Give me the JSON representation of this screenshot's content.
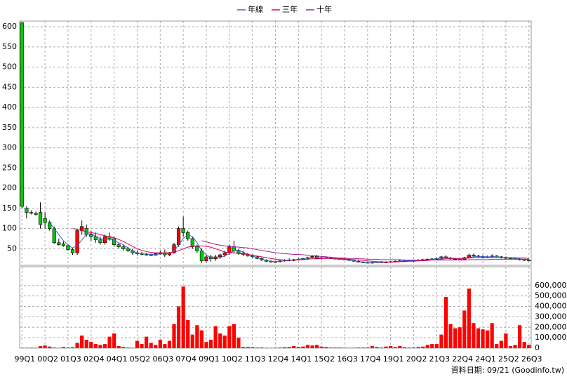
{
  "chart_data": [
    {
      "type": "candlestick",
      "categories": [
        "99Q1",
        null,
        null,
        null,
        null,
        "00Q2",
        null,
        null,
        null,
        null,
        "01Q3",
        null,
        null,
        null,
        null,
        "02Q4",
        null,
        null,
        null,
        null,
        "04Q1",
        null,
        null,
        null,
        null,
        "05Q2",
        null,
        null,
        null,
        null,
        "06Q3",
        null,
        null,
        null,
        null,
        "07Q4",
        null,
        null,
        null,
        null,
        "09Q1",
        null,
        null,
        null,
        null,
        "10Q2",
        null,
        null,
        null,
        null,
        "11Q3",
        null,
        null,
        null,
        null,
        "12Q4",
        null,
        null,
        null,
        null,
        "14Q1",
        null,
        null,
        null,
        null,
        "15Q2",
        null,
        null,
        null,
        null,
        "16Q3",
        null,
        null,
        null,
        null,
        "17Q4",
        null,
        null,
        null,
        null,
        "19Q1",
        null,
        null,
        null,
        null,
        "20Q2",
        null,
        null,
        null,
        null,
        "21Q3",
        null,
        null,
        null,
        null,
        "22Q4",
        null,
        null,
        null,
        null,
        "24Q1",
        null,
        null,
        null,
        null,
        "25Q2",
        null,
        null,
        null,
        null,
        "26Q3"
      ],
      "open": [
        610,
        150,
        140,
        138,
        140,
        125,
        115,
        100,
        65,
        62,
        58,
        48,
        40,
        95,
        100,
        85,
        80,
        72,
        65,
        80,
        75,
        60,
        55,
        50,
        45,
        40,
        38,
        36,
        35,
        34,
        38,
        40,
        35,
        40,
        60,
        100,
        90,
        75,
        55,
        45,
        20,
        30,
        25,
        30,
        35,
        40,
        55,
        45,
        40,
        36,
        33,
        30,
        26,
        22,
        19,
        18,
        18,
        20,
        22,
        21,
        23,
        24,
        26,
        28,
        31,
        26,
        28,
        27,
        26,
        25,
        24,
        23,
        21,
        19,
        17,
        16,
        15,
        16,
        17,
        16,
        17,
        18,
        19,
        20,
        21,
        20,
        21,
        22,
        23,
        24,
        25,
        26,
        30,
        27,
        25,
        24,
        23,
        28,
        34,
        32,
        31,
        30,
        29,
        32,
        30,
        28,
        27,
        26,
        25,
        23,
        22
      ],
      "high": [
        612,
        155,
        145,
        142,
        165,
        140,
        120,
        105,
        75,
        68,
        60,
        52,
        100,
        120,
        110,
        95,
        90,
        80,
        85,
        90,
        80,
        65,
        60,
        55,
        50,
        45,
        42,
        40,
        38,
        40,
        45,
        48,
        42,
        65,
        105,
        130,
        95,
        80,
        60,
        50,
        35,
        35,
        35,
        38,
        45,
        60,
        70,
        50,
        45,
        40,
        36,
        32,
        28,
        24,
        22,
        20,
        22,
        24,
        26,
        25,
        27,
        28,
        30,
        34,
        35,
        30,
        31,
        30,
        28,
        27,
        26,
        25,
        23,
        21,
        19,
        18,
        18,
        18,
        19,
        19,
        20,
        21,
        22,
        22,
        23,
        22,
        24,
        25,
        26,
        27,
        28,
        32,
        34,
        30,
        28,
        27,
        30,
        38,
        38,
        35,
        34,
        33,
        36,
        34,
        32,
        31,
        29,
        28,
        28,
        25,
        24
      ],
      "low": [
        150,
        125,
        135,
        132,
        100,
        100,
        95,
        62,
        58,
        55,
        45,
        35,
        35,
        85,
        80,
        70,
        65,
        60,
        60,
        70,
        55,
        50,
        45,
        42,
        35,
        33,
        34,
        33,
        32,
        33,
        35,
        30,
        32,
        38,
        55,
        80,
        70,
        50,
        40,
        15,
        15,
        18,
        20,
        25,
        30,
        35,
        40,
        35,
        32,
        30,
        27,
        24,
        20,
        17,
        16,
        16,
        16,
        18,
        19,
        19,
        21,
        22,
        24,
        26,
        24,
        23,
        25,
        25,
        24,
        23,
        22,
        20,
        18,
        16,
        15,
        14,
        14,
        15,
        15,
        15,
        16,
        16,
        17,
        18,
        19,
        18,
        19,
        20,
        21,
        22,
        23,
        24,
        25,
        23,
        22,
        21,
        22,
        26,
        30,
        29,
        28,
        27,
        27,
        28,
        26,
        25,
        24,
        23,
        21,
        20,
        19
      ],
      "close": [
        155,
        140,
        138,
        135,
        110,
        115,
        100,
        65,
        60,
        58,
        48,
        40,
        95,
        105,
        85,
        80,
        72,
        65,
        80,
        75,
        60,
        55,
        50,
        45,
        40,
        38,
        36,
        35,
        34,
        38,
        40,
        35,
        40,
        60,
        100,
        90,
        75,
        55,
        45,
        20,
        30,
        25,
        30,
        35,
        40,
        55,
        45,
        40,
        36,
        33,
        30,
        26,
        22,
        19,
        18,
        18,
        20,
        22,
        21,
        23,
        24,
        26,
        28,
        31,
        26,
        28,
        27,
        26,
        25,
        24,
        23,
        21,
        19,
        17,
        16,
        15,
        16,
        17,
        16,
        17,
        18,
        19,
        20,
        21,
        20,
        21,
        22,
        23,
        24,
        25,
        26,
        30,
        27,
        25,
        24,
        23,
        28,
        34,
        32,
        31,
        30,
        29,
        32,
        30,
        28,
        27,
        26,
        25,
        23,
        22,
        20
      ],
      "up_color": "#ff0000",
      "down_color": "#00cc00",
      "series": [
        {
          "name": "年線",
          "color": "#3366cc",
          "values": [
            null,
            null,
            null,
            null,
            null,
            null,
            115,
            100,
            85,
            70,
            60,
            52,
            58,
            72,
            85,
            88,
            80,
            75,
            72,
            74,
            70,
            65,
            60,
            52,
            45,
            40,
            38,
            37,
            36,
            36,
            37,
            38,
            38,
            45,
            60,
            75,
            85,
            80,
            65,
            45,
            35,
            28,
            27,
            28,
            32,
            38,
            45,
            47,
            42,
            36,
            32,
            28,
            24,
            21,
            19,
            18,
            19,
            20,
            21,
            22,
            24,
            25,
            27,
            28,
            28,
            28,
            27,
            26,
            25,
            24,
            23,
            22,
            20,
            18,
            17,
            16,
            16,
            16,
            16,
            17,
            17,
            18,
            19,
            20,
            20,
            21,
            21,
            22,
            23,
            24,
            25,
            27,
            28,
            27,
            26,
            25,
            25,
            28,
            30,
            31,
            31,
            30,
            30,
            30,
            29,
            28,
            27,
            26,
            25,
            24,
            23
          ]
        },
        {
          "name": "三年",
          "color": "#e0004a",
          "values": [
            null,
            null,
            null,
            null,
            null,
            null,
            null,
            null,
            null,
            null,
            null,
            100,
            98,
            95,
            92,
            90,
            88,
            85,
            82,
            80,
            77,
            73,
            68,
            62,
            56,
            50,
            46,
            43,
            41,
            40,
            40,
            40,
            40,
            42,
            45,
            50,
            54,
            56,
            57,
            57,
            56,
            54,
            50,
            46,
            42,
            40,
            40,
            38,
            37,
            36,
            34,
            32,
            30,
            28,
            26,
            24,
            23,
            22,
            22,
            22,
            22,
            23,
            24,
            25,
            25,
            26,
            26,
            26,
            26,
            26,
            25,
            24,
            23,
            22,
            21,
            20,
            19,
            18,
            18,
            17,
            17,
            17,
            18,
            18,
            19,
            19,
            20,
            20,
            21,
            22,
            23,
            24,
            25,
            25,
            25,
            25,
            26,
            27,
            28,
            28,
            28,
            28,
            29,
            29,
            29,
            28,
            28,
            28,
            27,
            27,
            26
          ]
        },
        {
          "name": "十年",
          "color": "#a020a0",
          "values": [
            null,
            null,
            null,
            null,
            null,
            null,
            null,
            null,
            null,
            null,
            null,
            null,
            null,
            null,
            null,
            null,
            null,
            null,
            null,
            null,
            null,
            null,
            null,
            null,
            null,
            null,
            null,
            null,
            null,
            null,
            null,
            null,
            null,
            null,
            null,
            null,
            null,
            null,
            null,
            70,
            67,
            64,
            61,
            59,
            57,
            56,
            55,
            54,
            53,
            52,
            50,
            48,
            46,
            44,
            42,
            40,
            39,
            38,
            37,
            36,
            36,
            35,
            34,
            33,
            32,
            31,
            30,
            29,
            28,
            27,
            27,
            26,
            26,
            25,
            25,
            24,
            24,
            24,
            23,
            23,
            23,
            23,
            23,
            22,
            22,
            22,
            22,
            22,
            22,
            22,
            22,
            22,
            22,
            22,
            22,
            22,
            22,
            23,
            23,
            23,
            23,
            23,
            24,
            24,
            24,
            24,
            24,
            24,
            24,
            24,
            24
          ]
        }
      ],
      "ylim": [
        9,
        614
      ],
      "yticks": [
        50,
        100,
        150,
        200,
        250,
        300,
        350,
        400,
        450,
        500,
        550,
        600
      ],
      "grid": true
    },
    {
      "type": "bar",
      "values": [
        2000,
        3000,
        4000,
        3000,
        20000,
        25000,
        15000,
        5000,
        3000,
        10000,
        5000,
        8000,
        50000,
        120000,
        80000,
        60000,
        40000,
        30000,
        40000,
        110000,
        140000,
        20000,
        10000,
        5000,
        3000,
        70000,
        40000,
        110000,
        50000,
        30000,
        80000,
        40000,
        70000,
        230000,
        400000,
        590000,
        270000,
        130000,
        220000,
        170000,
        60000,
        80000,
        210000,
        140000,
        120000,
        210000,
        230000,
        100000,
        10000,
        10000,
        8000,
        5000,
        5000,
        3000,
        3000,
        3000,
        5000,
        8000,
        10000,
        20000,
        10000,
        15000,
        30000,
        25000,
        30000,
        15000,
        10000,
        5000,
        5000,
        5000,
        3000,
        3000,
        3000,
        5000,
        5000,
        5000,
        20000,
        10000,
        5000,
        15000,
        20000,
        10000,
        20000,
        8000,
        5000,
        5000,
        10000,
        15000,
        30000,
        40000,
        40000,
        130000,
        490000,
        230000,
        190000,
        200000,
        360000,
        570000,
        240000,
        190000,
        180000,
        170000,
        240000,
        40000,
        70000,
        140000,
        20000,
        30000,
        220000,
        60000,
        30000
      ],
      "color": "#ff0000",
      "ylim": [
        0,
        780000
      ],
      "yticks": [
        0,
        {
          "value": 100000,
          "label": "100,000"
        },
        {
          "value": 200000,
          "label": "200,000"
        },
        {
          "value": 300000,
          "label": "300,000"
        },
        {
          "value": 400000,
          "label": "400,000"
        },
        {
          "value": 500000,
          "label": "500,000"
        },
        {
          "value": 600000,
          "label": "600,000"
        }
      ],
      "grid": true
    }
  ],
  "footer": "資料日期: 09/21  (Goodinfo.tw)"
}
